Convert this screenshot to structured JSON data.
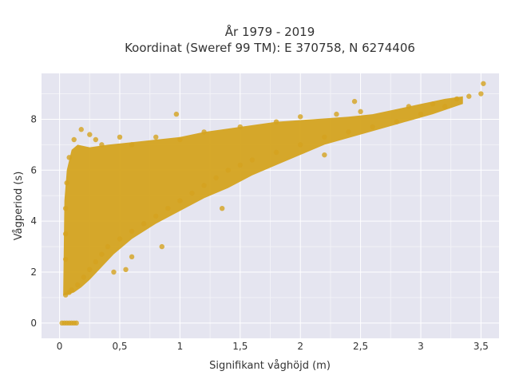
{
  "chart_data": {
    "type": "scatter",
    "title": "År 1979 - 2019",
    "subtitle": "Koordinat (Sweref 99 TM): E 370758, N 6274406",
    "xlabel": "Signifikant våghöjd (m)",
    "ylabel": "Vågperiod (s)",
    "xlim": [
      -0.15,
      3.65
    ],
    "ylim": [
      -0.6,
      9.8
    ],
    "x_ticks": [
      0,
      0.5,
      1,
      1.5,
      2,
      2.5,
      3,
      3.5
    ],
    "x_tick_labels": [
      "0",
      "0,5",
      "1",
      "1,5",
      "2",
      "2,5",
      "3",
      "3,5"
    ],
    "y_ticks": [
      0,
      2,
      4,
      6,
      8
    ],
    "y_tick_labels": [
      "0",
      "2",
      "4",
      "6",
      "8"
    ],
    "grid": true,
    "legend": "none",
    "colors": {
      "marker": "#D4A31F",
      "background": "#E5E5F0",
      "grid": "#FFFFFF"
    },
    "series": [
      {
        "points": [
          [
            0.02,
            0
          ],
          [
            0.04,
            0
          ],
          [
            0.06,
            0
          ],
          [
            0.08,
            0
          ],
          [
            0.1,
            0
          ],
          [
            0.12,
            0
          ],
          [
            0.14,
            0
          ],
          [
            0.05,
            1.1
          ],
          [
            0.08,
            1.2
          ],
          [
            0.1,
            1.3
          ],
          [
            0.15,
            1.5
          ],
          [
            0.2,
            1.8
          ],
          [
            0.25,
            2.1
          ],
          [
            0.3,
            2.4
          ],
          [
            0.35,
            2.7
          ],
          [
            0.4,
            3.0
          ],
          [
            0.5,
            3.3
          ],
          [
            0.6,
            3.6
          ],
          [
            0.7,
            3.9
          ],
          [
            0.8,
            4.2
          ],
          [
            0.9,
            4.5
          ],
          [
            1.0,
            4.8
          ],
          [
            1.1,
            5.1
          ],
          [
            1.2,
            5.4
          ],
          [
            1.3,
            5.7
          ],
          [
            1.4,
            6.0
          ],
          [
            1.5,
            6.2
          ],
          [
            1.6,
            6.4
          ],
          [
            1.8,
            6.7
          ],
          [
            2.0,
            7.0
          ],
          [
            2.2,
            7.3
          ],
          [
            2.4,
            7.5
          ],
          [
            2.6,
            7.7
          ],
          [
            2.8,
            7.9
          ],
          [
            3.0,
            8.2
          ],
          [
            3.2,
            8.5
          ],
          [
            3.4,
            8.9
          ],
          [
            3.5,
            9.0
          ],
          [
            3.52,
            9.4
          ],
          [
            0.05,
            2.5
          ],
          [
            0.05,
            3.5
          ],
          [
            0.05,
            4.5
          ],
          [
            0.06,
            5.5
          ],
          [
            0.08,
            6.5
          ],
          [
            0.12,
            7.2
          ],
          [
            0.18,
            7.6
          ],
          [
            0.25,
            7.4
          ],
          [
            0.3,
            7.2
          ],
          [
            0.35,
            7.0
          ],
          [
            0.5,
            7.3
          ],
          [
            0.6,
            7.0
          ],
          [
            0.8,
            7.3
          ],
          [
            1.0,
            7.2
          ],
          [
            1.2,
            7.5
          ],
          [
            1.5,
            7.7
          ],
          [
            1.8,
            7.9
          ],
          [
            2.0,
            8.1
          ],
          [
            2.3,
            8.2
          ],
          [
            2.5,
            8.3
          ],
          [
            2.9,
            8.5
          ],
          [
            3.1,
            8.6
          ],
          [
            3.3,
            8.8
          ],
          [
            0.97,
            8.2
          ],
          [
            2.45,
            8.7
          ],
          [
            1.35,
            4.5
          ],
          [
            2.2,
            6.6
          ],
          [
            0.45,
            2.0
          ],
          [
            0.55,
            2.1
          ],
          [
            0.6,
            2.6
          ],
          [
            0.85,
            3.0
          ]
        ]
      }
    ]
  }
}
